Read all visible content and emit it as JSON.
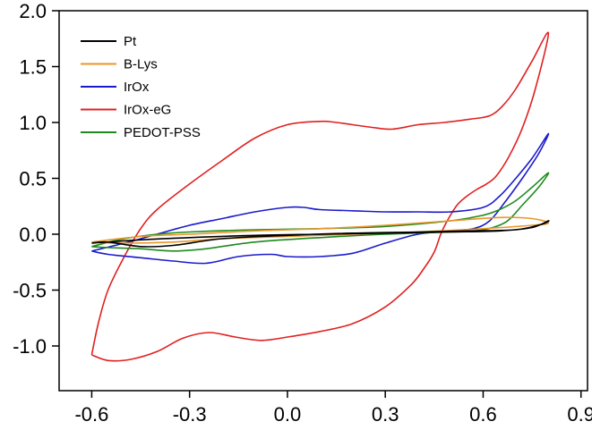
{
  "chart_data": {
    "type": "line",
    "title": "",
    "xlabel": "",
    "ylabel": "",
    "xlim": [
      -0.7,
      0.92
    ],
    "ylim": [
      -1.4,
      2.0
    ],
    "x_ticks": [
      -0.6,
      -0.3,
      0.0,
      0.3,
      0.6,
      0.9
    ],
    "x_tick_labels": [
      "-0.6",
      "-0.3",
      "0.0",
      "0.3",
      "0.6",
      "0.9"
    ],
    "y_ticks": [
      2.0,
      1.5,
      1.0,
      0.5,
      0.0,
      -0.5,
      -1.0
    ],
    "y_tick_labels": [
      "2.0",
      "1.5",
      "1.0",
      "0.5",
      "0.0",
      "-0.5",
      "-1.0"
    ],
    "grid": false,
    "legend_position": "top-left",
    "series": [
      {
        "name": "Pt",
        "color": "#000000",
        "points": [
          [
            -0.6,
            -0.08
          ],
          [
            -0.45,
            -0.05
          ],
          [
            -0.3,
            -0.03
          ],
          [
            -0.1,
            -0.01
          ],
          [
            0.1,
            0.0
          ],
          [
            0.3,
            0.01
          ],
          [
            0.5,
            0.02
          ],
          [
            0.65,
            0.03
          ],
          [
            0.75,
            0.06
          ],
          [
            0.8,
            0.12
          ],
          [
            0.78,
            0.09
          ],
          [
            0.7,
            0.04
          ],
          [
            0.55,
            0.03
          ],
          [
            0.4,
            0.02
          ],
          [
            0.2,
            0.01
          ],
          [
            0.0,
            -0.01
          ],
          [
            -0.2,
            -0.04
          ],
          [
            -0.35,
            -0.1
          ],
          [
            -0.45,
            -0.11
          ],
          [
            -0.55,
            -0.07
          ],
          [
            -0.6,
            -0.08
          ]
        ]
      },
      {
        "name": "B-Lys",
        "color": "#E8962A",
        "points": [
          [
            -0.6,
            -0.07
          ],
          [
            -0.45,
            -0.02
          ],
          [
            -0.3,
            0.0
          ],
          [
            -0.1,
            0.03
          ],
          [
            0.1,
            0.05
          ],
          [
            0.3,
            0.08
          ],
          [
            0.5,
            0.12
          ],
          [
            0.65,
            0.15
          ],
          [
            0.75,
            0.14
          ],
          [
            0.8,
            0.1
          ],
          [
            0.75,
            0.08
          ],
          [
            0.6,
            0.05
          ],
          [
            0.4,
            0.02
          ],
          [
            0.2,
            0.0
          ],
          [
            0.0,
            -0.02
          ],
          [
            -0.2,
            -0.04
          ],
          [
            -0.35,
            -0.07
          ],
          [
            -0.5,
            -0.08
          ],
          [
            -0.6,
            -0.07
          ]
        ]
      },
      {
        "name": "IrOx",
        "color": "#1A1ACC",
        "points": [
          [
            -0.6,
            -0.15
          ],
          [
            -0.5,
            -0.08
          ],
          [
            -0.4,
            0.0
          ],
          [
            -0.3,
            0.08
          ],
          [
            -0.2,
            0.14
          ],
          [
            -0.1,
            0.2
          ],
          [
            0.0,
            0.24
          ],
          [
            0.05,
            0.24
          ],
          [
            0.1,
            0.22
          ],
          [
            0.2,
            0.21
          ],
          [
            0.3,
            0.2
          ],
          [
            0.4,
            0.2
          ],
          [
            0.5,
            0.2
          ],
          [
            0.6,
            0.24
          ],
          [
            0.65,
            0.34
          ],
          [
            0.7,
            0.5
          ],
          [
            0.75,
            0.68
          ],
          [
            0.8,
            0.9
          ],
          [
            0.77,
            0.72
          ],
          [
            0.72,
            0.5
          ],
          [
            0.67,
            0.3
          ],
          [
            0.62,
            0.12
          ],
          [
            0.57,
            0.05
          ],
          [
            0.5,
            0.03
          ],
          [
            0.4,
            0.0
          ],
          [
            0.3,
            -0.08
          ],
          [
            0.2,
            -0.17
          ],
          [
            0.1,
            -0.2
          ],
          [
            0.0,
            -0.2
          ],
          [
            -0.05,
            -0.18
          ],
          [
            -0.15,
            -0.2
          ],
          [
            -0.25,
            -0.26
          ],
          [
            -0.35,
            -0.24
          ],
          [
            -0.45,
            -0.21
          ],
          [
            -0.55,
            -0.18
          ],
          [
            -0.6,
            -0.15
          ]
        ]
      },
      {
        "name": "IrOx-eG",
        "color": "#E02020",
        "points": [
          [
            -0.6,
            -1.08
          ],
          [
            -0.55,
            -1.13
          ],
          [
            -0.48,
            -1.12
          ],
          [
            -0.4,
            -1.05
          ],
          [
            -0.32,
            -0.93
          ],
          [
            -0.24,
            -0.88
          ],
          [
            -0.16,
            -0.92
          ],
          [
            -0.08,
            -0.95
          ],
          [
            0.0,
            -0.92
          ],
          [
            0.1,
            -0.87
          ],
          [
            0.2,
            -0.8
          ],
          [
            0.3,
            -0.65
          ],
          [
            0.38,
            -0.45
          ],
          [
            0.42,
            -0.3
          ],
          [
            0.45,
            -0.16
          ],
          [
            0.47,
            0.0
          ],
          [
            0.49,
            0.12
          ],
          [
            0.52,
            0.26
          ],
          [
            0.55,
            0.34
          ],
          [
            0.58,
            0.4
          ],
          [
            0.61,
            0.45
          ],
          [
            0.64,
            0.52
          ],
          [
            0.68,
            0.7
          ],
          [
            0.72,
            0.95
          ],
          [
            0.76,
            1.3
          ],
          [
            0.8,
            1.8
          ],
          [
            0.75,
            1.55
          ],
          [
            0.7,
            1.3
          ],
          [
            0.66,
            1.15
          ],
          [
            0.62,
            1.06
          ],
          [
            0.56,
            1.03
          ],
          [
            0.48,
            1.0
          ],
          [
            0.4,
            0.98
          ],
          [
            0.32,
            0.94
          ],
          [
            0.25,
            0.96
          ],
          [
            0.15,
            1.0
          ],
          [
            0.1,
            1.01
          ],
          [
            0.0,
            0.98
          ],
          [
            -0.1,
            0.86
          ],
          [
            -0.2,
            0.66
          ],
          [
            -0.3,
            0.45
          ],
          [
            -0.4,
            0.22
          ],
          [
            -0.45,
            0.05
          ],
          [
            -0.5,
            -0.2
          ],
          [
            -0.55,
            -0.5
          ],
          [
            -0.58,
            -0.8
          ],
          [
            -0.6,
            -1.08
          ]
        ]
      },
      {
        "name": "PEDOT-PSS",
        "color": "#1E8A1E",
        "points": [
          [
            -0.6,
            -0.11
          ],
          [
            -0.5,
            -0.04
          ],
          [
            -0.4,
            0.0
          ],
          [
            -0.3,
            0.02
          ],
          [
            -0.1,
            0.04
          ],
          [
            0.1,
            0.05
          ],
          [
            0.3,
            0.07
          ],
          [
            0.5,
            0.12
          ],
          [
            0.6,
            0.17
          ],
          [
            0.65,
            0.22
          ],
          [
            0.7,
            0.3
          ],
          [
            0.75,
            0.42
          ],
          [
            0.8,
            0.55
          ],
          [
            0.77,
            0.42
          ],
          [
            0.72,
            0.26
          ],
          [
            0.67,
            0.11
          ],
          [
            0.6,
            0.04
          ],
          [
            0.5,
            0.02
          ],
          [
            0.3,
            0.0
          ],
          [
            0.1,
            -0.03
          ],
          [
            -0.1,
            -0.07
          ],
          [
            -0.25,
            -0.13
          ],
          [
            -0.35,
            -0.15
          ],
          [
            -0.45,
            -0.13
          ],
          [
            -0.55,
            -0.12
          ],
          [
            -0.6,
            -0.11
          ]
        ]
      }
    ]
  }
}
